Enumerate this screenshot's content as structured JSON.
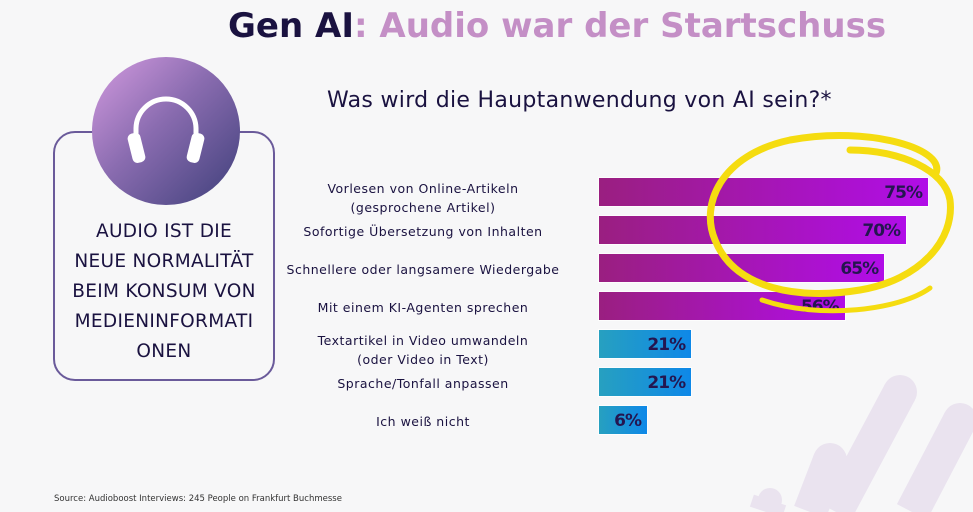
{
  "title": {
    "part1": "Gen AI",
    "part2": ": Audio war der Startschuss"
  },
  "card": {
    "icon": "headphones-icon",
    "text_lines": [
      "AUDIO IST DIE",
      "NEUE NORMALITÄT",
      "BEIM KONSUM VON",
      "MEDIENINFORMATI",
      "ONEN"
    ]
  },
  "source": "Source: Audioboost Interviews: 245 People on Frankfurt Buchmesse",
  "colors": {
    "title_dark": "#1a1240",
    "title_accent": "#c48fc6",
    "bar_purple": "#b10de8",
    "bar_blue": "#0e88e8",
    "highlight": "#f5dc10"
  },
  "chart_data": {
    "type": "bar",
    "orientation": "horizontal",
    "title": "Was wird die Hauptanwendung von AI sein?*",
    "categories": [
      [
        "Vorlesen von Online-Artikeln",
        "(gesprochene Artikel)"
      ],
      [
        "Sofortige Übersetzung von Inhalten"
      ],
      [
        "Schnellere oder langsamere Wiedergabe"
      ],
      [
        "Mit einem KI-Agenten sprechen"
      ],
      [
        "Textartikel in Video umwandeln",
        "(oder Video in Text)"
      ],
      [
        "Sprache/Tonfall anpassen"
      ],
      [
        "Ich weiß nicht"
      ]
    ],
    "values": [
      75,
      70,
      65,
      56,
      21,
      21,
      6
    ],
    "value_labels": [
      "75%",
      "70%",
      "65%",
      "56%",
      "21%",
      "21%",
      "6%"
    ],
    "bar_colors": [
      "purple",
      "purple",
      "purple",
      "purple",
      "blue",
      "blue",
      "blue"
    ],
    "annotation": "yellow hand-drawn circle around top three bars"
  }
}
